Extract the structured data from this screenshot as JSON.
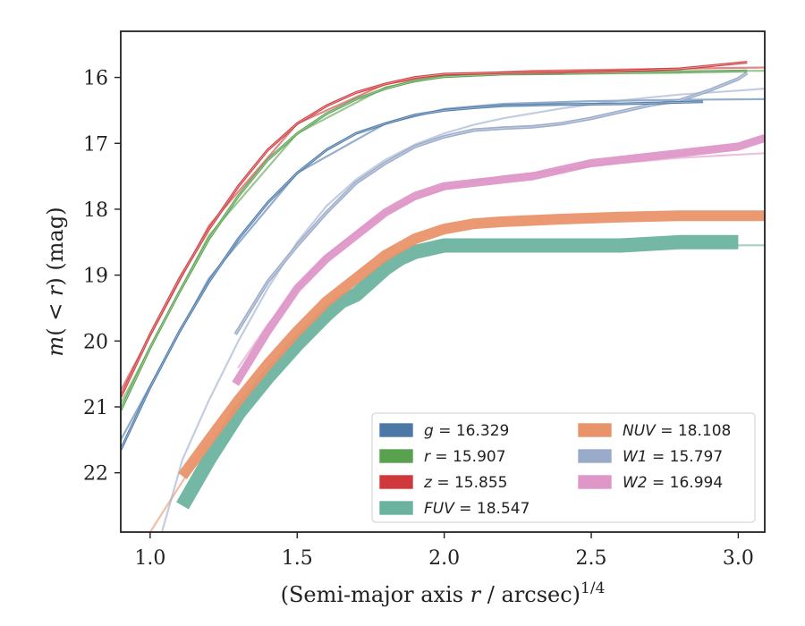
{
  "chart_data": {
    "type": "line",
    "xlabel": "(Semi-major axis r / arcsec)^(1/4)",
    "ylabel": "m(<r) (mag)",
    "xlim": [
      0.9,
      3.09
    ],
    "ylim": [
      22.9,
      15.3
    ],
    "y_inverted": true,
    "grid": false,
    "legend_position": "lower-right",
    "xticks": [
      1.0,
      1.5,
      2.0,
      2.5,
      3.0
    ],
    "xtick_labels": [
      "1.0",
      "1.5",
      "2.0",
      "2.5",
      "3.0"
    ],
    "yticks": [
      16,
      17,
      18,
      19,
      20,
      21,
      22
    ],
    "ytick_labels": [
      "16",
      "17",
      "18",
      "19",
      "20",
      "21",
      "22"
    ],
    "legend": [
      {
        "band": "g",
        "text": "= 16.329"
      },
      {
        "band": "r",
        "text": "= 15.907"
      },
      {
        "band": "z",
        "text": "= 15.855"
      },
      {
        "band": "FUV",
        "text": "= 18.547"
      },
      {
        "band": "NUV",
        "text": "= 18.108"
      },
      {
        "band": "W1",
        "text": "= 15.797"
      },
      {
        "band": "W2",
        "text": "= 16.994"
      }
    ],
    "series": [
      {
        "name": "g",
        "color": "#4C78A8",
        "band_width": 3,
        "x": [
          0.9,
          1.0,
          1.1,
          1.2,
          1.3,
          1.4,
          1.5,
          1.6,
          1.7,
          1.8,
          1.9,
          2.0,
          2.1,
          2.2,
          2.4,
          2.6,
          2.88
        ],
        "y": [
          21.65,
          20.7,
          19.85,
          19.1,
          18.45,
          17.9,
          17.45,
          17.1,
          16.85,
          16.7,
          16.57,
          16.5,
          16.46,
          16.43,
          16.41,
          16.4,
          16.37
        ],
        "model_x": [
          0.9,
          1.2,
          1.5,
          1.8,
          2.0,
          2.2,
          2.5,
          2.8,
          3.09
        ],
        "model_y": [
          21.5,
          19.05,
          17.45,
          16.7,
          16.48,
          16.4,
          16.36,
          16.34,
          16.33
        ]
      },
      {
        "name": "r",
        "color": "#59A14F",
        "band_width": 3,
        "x": [
          0.9,
          1.0,
          1.1,
          1.2,
          1.3,
          1.4,
          1.5,
          1.6,
          1.7,
          1.8,
          1.9,
          2.0,
          2.2,
          2.4,
          2.6,
          2.8,
          3.03
        ],
        "y": [
          21.05,
          20.1,
          19.25,
          18.45,
          17.8,
          17.25,
          16.85,
          16.55,
          16.33,
          16.17,
          16.05,
          15.99,
          15.95,
          15.94,
          15.93,
          15.92,
          15.9
        ],
        "model_x": [
          0.9,
          1.2,
          1.5,
          1.8,
          2.0,
          2.3,
          2.6,
          3.09
        ],
        "model_y": [
          20.95,
          18.4,
          16.85,
          16.15,
          15.98,
          15.93,
          15.91,
          15.9
        ]
      },
      {
        "name": "z",
        "color": "#D0393B",
        "band_width": 3,
        "x": [
          0.9,
          1.0,
          1.1,
          1.2,
          1.3,
          1.4,
          1.5,
          1.6,
          1.7,
          1.8,
          1.9,
          2.0,
          2.2,
          2.4,
          2.6,
          2.8,
          3.03
        ],
        "y": [
          20.85,
          19.9,
          19.05,
          18.3,
          17.65,
          17.1,
          16.7,
          16.43,
          16.23,
          16.1,
          16.0,
          15.95,
          15.93,
          15.92,
          15.9,
          15.87,
          15.77
        ],
        "model_x": [
          0.9,
          1.2,
          1.5,
          1.8,
          2.0,
          2.3,
          2.6,
          3.09
        ],
        "model_y": [
          20.75,
          18.25,
          16.7,
          16.1,
          15.96,
          15.9,
          15.88,
          15.85
        ]
      },
      {
        "name": "FUV",
        "color": "#6BB39F",
        "band_width": 16,
        "x": [
          1.11,
          1.2,
          1.3,
          1.4,
          1.5,
          1.6,
          1.65,
          1.7,
          1.75,
          1.8,
          1.85,
          1.9,
          1.95,
          2.0,
          2.1,
          2.2,
          2.4,
          2.6,
          2.8,
          3.0
        ],
        "y": [
          22.5,
          21.8,
          21.1,
          20.55,
          20.05,
          19.6,
          19.4,
          19.3,
          19.1,
          18.9,
          18.75,
          18.65,
          18.6,
          18.55,
          18.55,
          18.55,
          18.55,
          18.55,
          18.5,
          18.5
        ],
        "model_x": [
          3.0,
          3.09
        ],
        "model_y": [
          18.547,
          18.547
        ]
      },
      {
        "name": "NUV",
        "color": "#E9936A",
        "band_width": 12,
        "x": [
          1.11,
          1.2,
          1.3,
          1.4,
          1.5,
          1.6,
          1.7,
          1.8,
          1.9,
          2.0,
          2.1,
          2.2,
          2.4,
          2.6,
          2.8,
          3.0,
          3.09
        ],
        "y": [
          22.05,
          21.5,
          20.9,
          20.35,
          19.85,
          19.4,
          19.05,
          18.7,
          18.45,
          18.3,
          18.22,
          18.19,
          18.15,
          18.12,
          18.1,
          18.1,
          18.1
        ],
        "model_x": [
          0.9,
          1.0,
          1.1,
          1.2
        ],
        "model_y": [
          23.5,
          22.9,
          22.2,
          21.5
        ]
      },
      {
        "name": "W1",
        "color": "#9AABC9",
        "band_width": 4,
        "x": [
          1.29,
          1.4,
          1.5,
          1.6,
          1.7,
          1.8,
          1.9,
          2.0,
          2.1,
          2.2,
          2.3,
          2.4,
          2.5,
          2.6,
          2.7,
          2.8,
          2.9,
          3.0,
          3.03
        ],
        "y": [
          19.9,
          19.1,
          18.55,
          18.05,
          17.6,
          17.3,
          17.05,
          16.9,
          16.8,
          16.77,
          16.75,
          16.7,
          16.62,
          16.52,
          16.42,
          16.35,
          16.2,
          16.02,
          15.93
        ],
        "model_x": [
          1.04,
          1.11,
          1.2,
          1.3,
          1.4,
          1.5,
          1.6,
          1.7,
          1.8,
          1.9,
          2.0,
          2.1,
          2.2,
          2.4,
          2.6,
          2.8,
          3.0,
          3.09
        ],
        "model_y": [
          22.9,
          21.8,
          20.9,
          20.0,
          19.2,
          18.5,
          17.95,
          17.55,
          17.25,
          17.02,
          16.85,
          16.72,
          16.62,
          16.47,
          16.35,
          16.26,
          16.2,
          16.17
        ]
      },
      {
        "name": "W2",
        "color": "#DE97C7",
        "band_width": 9,
        "x": [
          1.29,
          1.4,
          1.5,
          1.6,
          1.7,
          1.8,
          1.9,
          2.0,
          2.1,
          2.2,
          2.3,
          2.4,
          2.5,
          2.6,
          2.7,
          2.8,
          2.9,
          3.0,
          3.09
        ],
        "y": [
          20.65,
          19.85,
          19.2,
          18.75,
          18.4,
          18.05,
          17.8,
          17.65,
          17.6,
          17.55,
          17.5,
          17.4,
          17.3,
          17.25,
          17.2,
          17.15,
          17.1,
          17.05,
          16.92
        ],
        "model_x": [
          1.3,
          1.4,
          1.5,
          1.6,
          1.7,
          1.8,
          1.9,
          2.0,
          2.1,
          2.2,
          2.4,
          2.6,
          2.8,
          3.09
        ],
        "model_y": [
          20.4,
          19.75,
          19.2,
          18.7,
          18.35,
          18.05,
          17.85,
          17.7,
          17.58,
          17.5,
          17.4,
          17.3,
          17.22,
          17.15
        ]
      }
    ]
  }
}
